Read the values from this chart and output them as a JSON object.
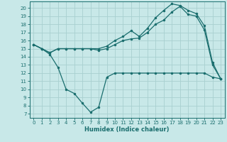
{
  "xlabel": "Humidex (Indice chaleur)",
  "bg_color": "#c8e8e8",
  "grid_color": "#a8d0d0",
  "line_color": "#1a6e6e",
  "xlim": [
    -0.5,
    23.5
  ],
  "ylim": [
    6.5,
    20.8
  ],
  "xticks": [
    0,
    1,
    2,
    3,
    4,
    5,
    6,
    7,
    8,
    9,
    10,
    11,
    12,
    13,
    14,
    15,
    16,
    17,
    18,
    19,
    20,
    21,
    22,
    23
  ],
  "yticks": [
    7,
    8,
    9,
    10,
    11,
    12,
    13,
    14,
    15,
    16,
    17,
    18,
    19,
    20
  ],
  "line1_x": [
    0,
    1,
    2,
    3,
    4,
    5,
    6,
    7,
    8,
    9,
    10,
    11,
    12,
    13,
    14,
    15,
    16,
    17,
    18,
    19,
    20,
    21,
    22,
    23
  ],
  "line1_y": [
    15.5,
    15.0,
    14.3,
    12.7,
    10.0,
    9.5,
    8.3,
    7.2,
    7.8,
    11.5,
    12.0,
    12.0,
    12.0,
    12.0,
    12.0,
    12.0,
    12.0,
    12.0,
    12.0,
    12.0,
    12.0,
    12.0,
    11.5,
    11.3
  ],
  "line2_x": [
    0,
    1,
    2,
    3,
    4,
    5,
    6,
    7,
    8,
    9,
    10,
    11,
    12,
    13,
    14,
    15,
    16,
    17,
    18,
    19,
    20,
    21,
    22,
    23
  ],
  "line2_y": [
    15.5,
    15.0,
    14.5,
    15.0,
    15.0,
    15.0,
    15.0,
    15.0,
    14.8,
    15.0,
    15.5,
    16.0,
    16.2,
    16.3,
    17.0,
    18.0,
    18.5,
    19.5,
    20.2,
    19.2,
    19.0,
    17.3,
    13.0,
    11.3
  ],
  "line3_x": [
    0,
    1,
    2,
    3,
    4,
    5,
    6,
    7,
    8,
    9,
    10,
    11,
    12,
    13,
    14,
    15,
    16,
    17,
    18,
    19,
    20,
    21,
    22,
    23
  ],
  "line3_y": [
    15.5,
    15.0,
    14.5,
    15.0,
    15.0,
    15.0,
    15.0,
    15.0,
    15.0,
    15.3,
    16.0,
    16.5,
    17.2,
    16.5,
    17.5,
    18.8,
    19.7,
    20.5,
    20.3,
    19.7,
    19.3,
    17.8,
    13.3,
    11.3
  ]
}
